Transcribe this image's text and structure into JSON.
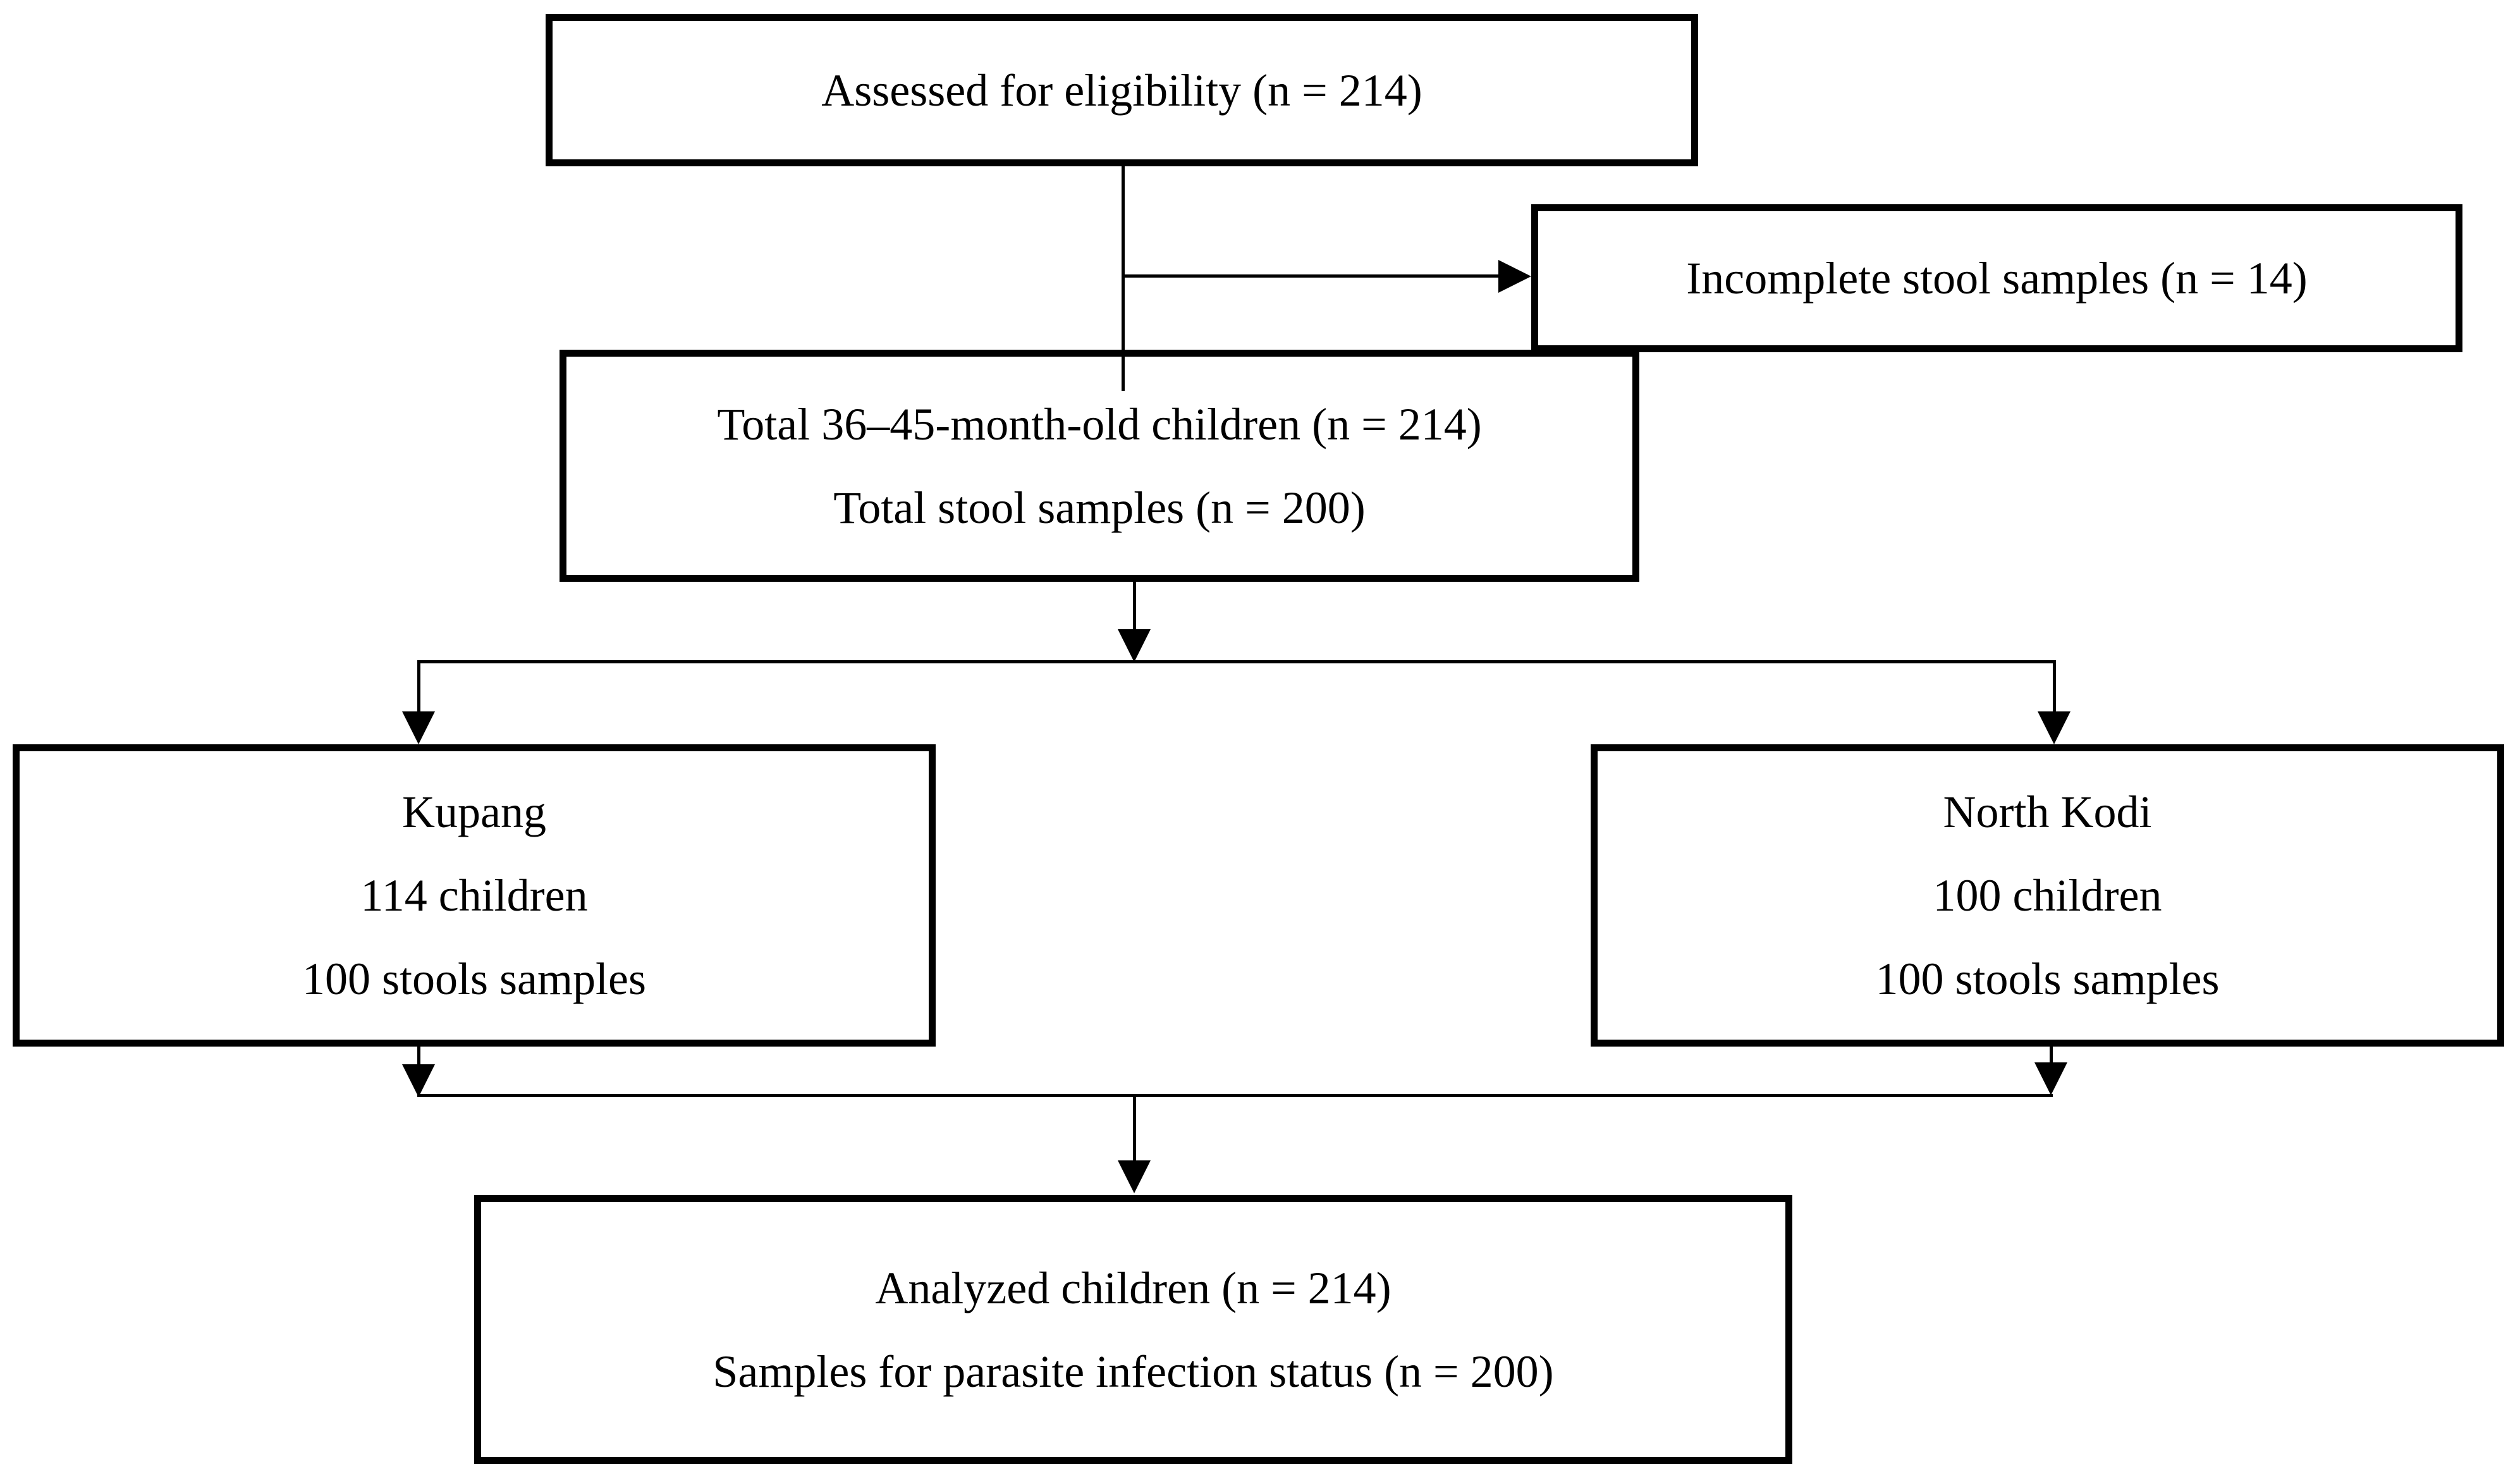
{
  "figure": {
    "type": "flowchart",
    "background_color": "#ffffff",
    "line_color": "#000000",
    "text_color": "#000000"
  },
  "boxes": {
    "assessed": {
      "lines": [
        "Assessed for eligibility (n = 214)"
      ]
    },
    "incomplete": {
      "lines": [
        "Incomplete stool samples (n = 14)"
      ]
    },
    "total": {
      "lines": [
        "Total 36–45-month-old children (n = 214)",
        "Total stool samples (n = 200)"
      ]
    },
    "kupang": {
      "lines": [
        "Kupang",
        "114 children",
        "100 stools samples"
      ]
    },
    "north_kodi": {
      "lines": [
        "North Kodi",
        "100 children",
        "100 stools samples"
      ]
    },
    "analyzed": {
      "lines": [
        "Analyzed children (n = 214)",
        "Samples for parasite infection status (n = 200)"
      ]
    }
  }
}
